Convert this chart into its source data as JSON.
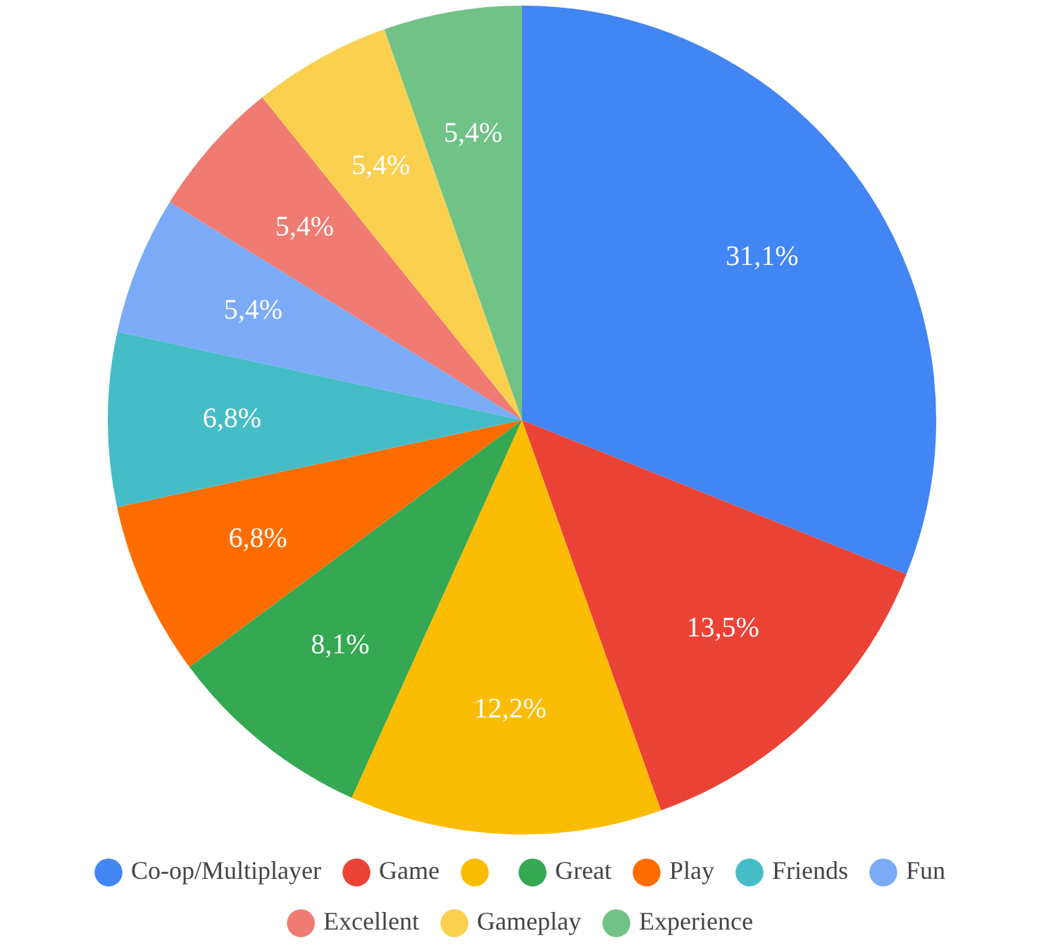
{
  "chart_data": {
    "type": "pie",
    "categories": [
      "Co-op/Multiplayer",
      "Game",
      null,
      "Great",
      "Play",
      "Friends",
      "Fun",
      "Excellent",
      "Gameplay",
      "Experience"
    ],
    "values": [
      31.1,
      13.5,
      12.2,
      8.1,
      6.8,
      6.8,
      5.4,
      5.4,
      5.4,
      5.4
    ],
    "value_labels": [
      "31,1%",
      "13,5%",
      "12,2%",
      "8,1%",
      "6,8%",
      "6,8%",
      "5,4%",
      "5,4%",
      "5,4%",
      "5,4%"
    ],
    "colors": [
      "#4285f4",
      "#ea4335",
      "#fbbc04",
      "#34a853",
      "#ff6d01",
      "#46bdc6",
      "#7baaf7",
      "#f07b72",
      "#fcd04f",
      "#71c287"
    ],
    "legend": "bottom"
  }
}
